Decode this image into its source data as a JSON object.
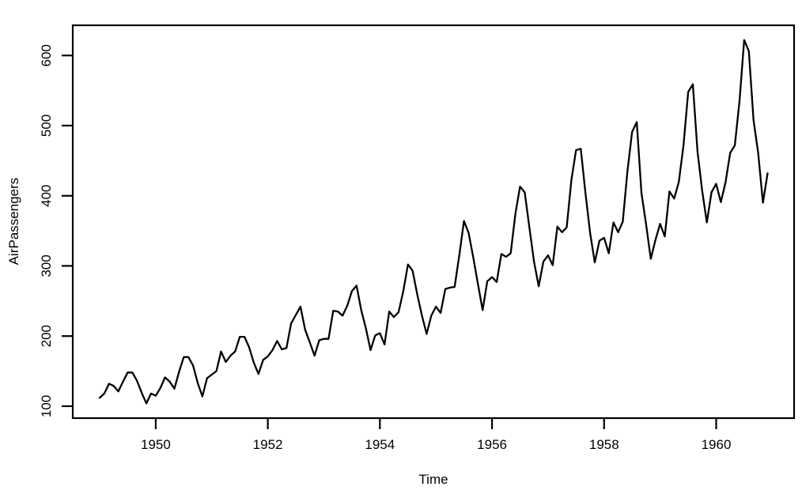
{
  "figure": {
    "background_color": "#ffffff",
    "line_color": "#000000",
    "axis_color": "#000000",
    "text_color": "#000000"
  },
  "chart_data": {
    "type": "line",
    "title": "",
    "xlabel": "Time",
    "ylabel": "AirPassengers",
    "series": [
      {
        "name": "AirPassengers",
        "start_year": 1949,
        "frequency": 12,
        "values": [
          112,
          118,
          132,
          129,
          121,
          135,
          148,
          148,
          136,
          119,
          104,
          118,
          115,
          126,
          141,
          135,
          125,
          149,
          170,
          170,
          158,
          133,
          114,
          140,
          145,
          150,
          178,
          163,
          172,
          178,
          199,
          199,
          184,
          162,
          146,
          166,
          171,
          180,
          193,
          181,
          183,
          218,
          230,
          242,
          209,
          191,
          172,
          194,
          196,
          196,
          236,
          235,
          229,
          243,
          264,
          272,
          237,
          211,
          180,
          201,
          204,
          188,
          235,
          227,
          234,
          264,
          302,
          293,
          259,
          229,
          203,
          229,
          242,
          233,
          267,
          269,
          270,
          315,
          364,
          347,
          312,
          274,
          237,
          278,
          284,
          277,
          317,
          313,
          318,
          374,
          413,
          405,
          355,
          306,
          271,
          306,
          315,
          301,
          356,
          348,
          355,
          422,
          465,
          467,
          404,
          347,
          305,
          336,
          340,
          318,
          362,
          348,
          363,
          435,
          491,
          505,
          404,
          359,
          310,
          337,
          360,
          342,
          406,
          396,
          420,
          472,
          548,
          559,
          463,
          407,
          362,
          405,
          417,
          391,
          419,
          461,
          472,
          535,
          622,
          606,
          508,
          461,
          390,
          432
        ]
      }
    ],
    "xlim": [
      1948.52,
      1961.39
    ],
    "ylim": [
      83,
      643
    ],
    "xticks": [
      1950,
      1952,
      1954,
      1956,
      1958,
      1960
    ],
    "xtick_labels": [
      "1950",
      "1952",
      "1954",
      "1956",
      "1958",
      "1960"
    ],
    "yticks": [
      100,
      200,
      300,
      400,
      500,
      600
    ],
    "ytick_labels": [
      "100",
      "200",
      "300",
      "400",
      "500",
      "600"
    ],
    "grid": false,
    "legend": "none"
  }
}
